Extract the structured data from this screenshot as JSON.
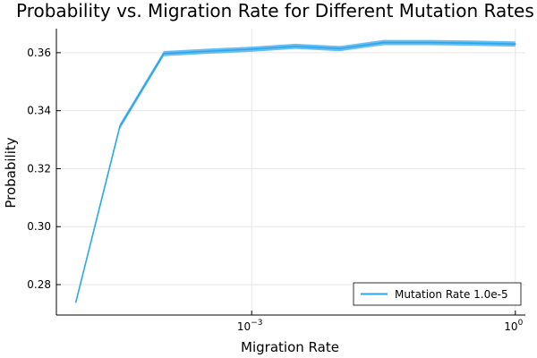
{
  "chart_data": {
    "type": "line",
    "title": "Probability vs. Migration Rate for Different Mutation Rates",
    "xlabel": "Migration Rate",
    "ylabel": "Probability",
    "x_scale": "log10",
    "xlim": [
      6e-06,
      1.3
    ],
    "ylim": [
      0.2695,
      0.3683
    ],
    "x_ticks": [
      {
        "value": 0.001,
        "base": "10",
        "exp": "−3"
      },
      {
        "value": 1,
        "base": "10",
        "exp": "0"
      }
    ],
    "y_ticks": [
      {
        "value": 0.28,
        "label": "0.28"
      },
      {
        "value": 0.3,
        "label": "0.30"
      },
      {
        "value": 0.32,
        "label": "0.32"
      },
      {
        "value": 0.34,
        "label": "0.34"
      },
      {
        "value": 0.36,
        "label": "0.36"
      }
    ],
    "grid": true,
    "legend_position": "bottom-right",
    "series": [
      {
        "name": "Mutation Rate 1.0e-5",
        "color": "#2ea5e8",
        "band_color": "#4cb3ee",
        "x": [
          1e-05,
          3.16e-05,
          0.0001,
          0.000316,
          0.001,
          0.00316,
          0.01,
          0.0316,
          0.1,
          0.316,
          1
        ],
        "y": [
          0.274,
          0.3345,
          0.3597,
          0.3605,
          0.3612,
          0.3622,
          0.3614,
          0.3635,
          0.3635,
          0.3633,
          0.363
        ],
        "band": [
          0.0006,
          0.0009,
          0.0009,
          0.0009,
          0.0009,
          0.0009,
          0.0009,
          0.0009,
          0.0009,
          0.0009,
          0.0009
        ]
      }
    ]
  }
}
